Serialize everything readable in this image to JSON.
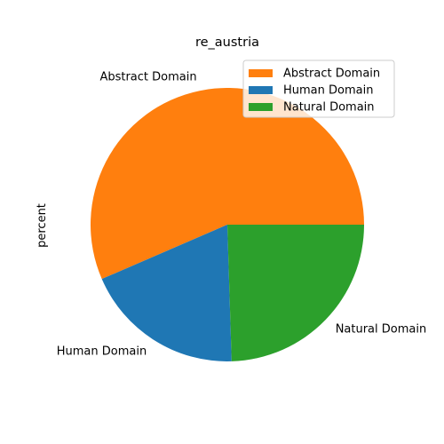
{
  "chart_data": {
    "type": "pie",
    "title": "re_austria",
    "ylabel": "percent",
    "labels": [
      "Abstract Domain",
      "Human Domain",
      "Natural Domain"
    ],
    "values": [
      56.5,
      19.0,
      24.5
    ],
    "colors": [
      "#ff7f0e",
      "#1f77b4",
      "#2ca02c"
    ],
    "start_angle_deg": 0,
    "direction": "counterclockwise",
    "legend": {
      "placement": "top-right",
      "entries": [
        "Abstract Domain",
        "Human Domain",
        "Natural Domain"
      ]
    }
  }
}
